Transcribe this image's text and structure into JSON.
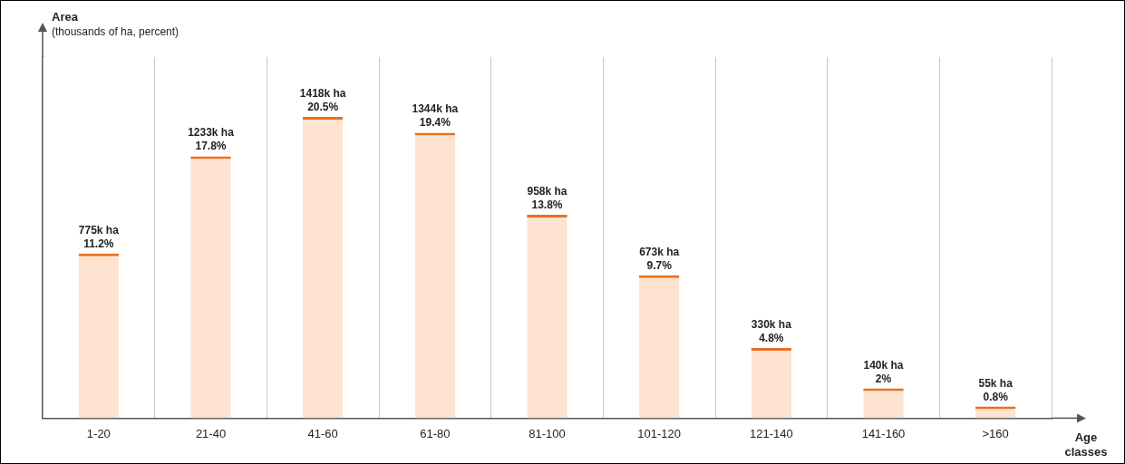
{
  "chart_data": {
    "type": "bar",
    "ylabel": "Area",
    "ylabel_units": "(thousands of ha, percent)",
    "xlabel": "Age classes",
    "categories": [
      "1-20",
      "21-40",
      "41-60",
      "61-80",
      "81-100",
      "101-120",
      "121-140",
      "141-160",
      ">160"
    ],
    "values": [
      775,
      1233,
      1418,
      1344,
      958,
      673,
      330,
      140,
      55
    ],
    "value_labels": [
      "775k ha",
      "1233k ha",
      "1418k ha",
      "1344k ha",
      "958k ha",
      "673k ha",
      "330k ha",
      "140k ha",
      "55k ha"
    ],
    "shares": [
      11.2,
      17.8,
      20.5,
      19.4,
      13.8,
      9.7,
      4.8,
      2,
      0.8
    ],
    "share_labels": [
      "11.2%",
      "17.8%",
      "20.5%",
      "19.4%",
      "13.8%",
      "9.7%",
      "4.8%",
      "2%",
      "0.8%"
    ],
    "color": "#fde3d0",
    "ylim": [
      0,
      1700
    ],
    "grid": true,
    "data_labels": true,
    "tick_labels": "x"
  }
}
